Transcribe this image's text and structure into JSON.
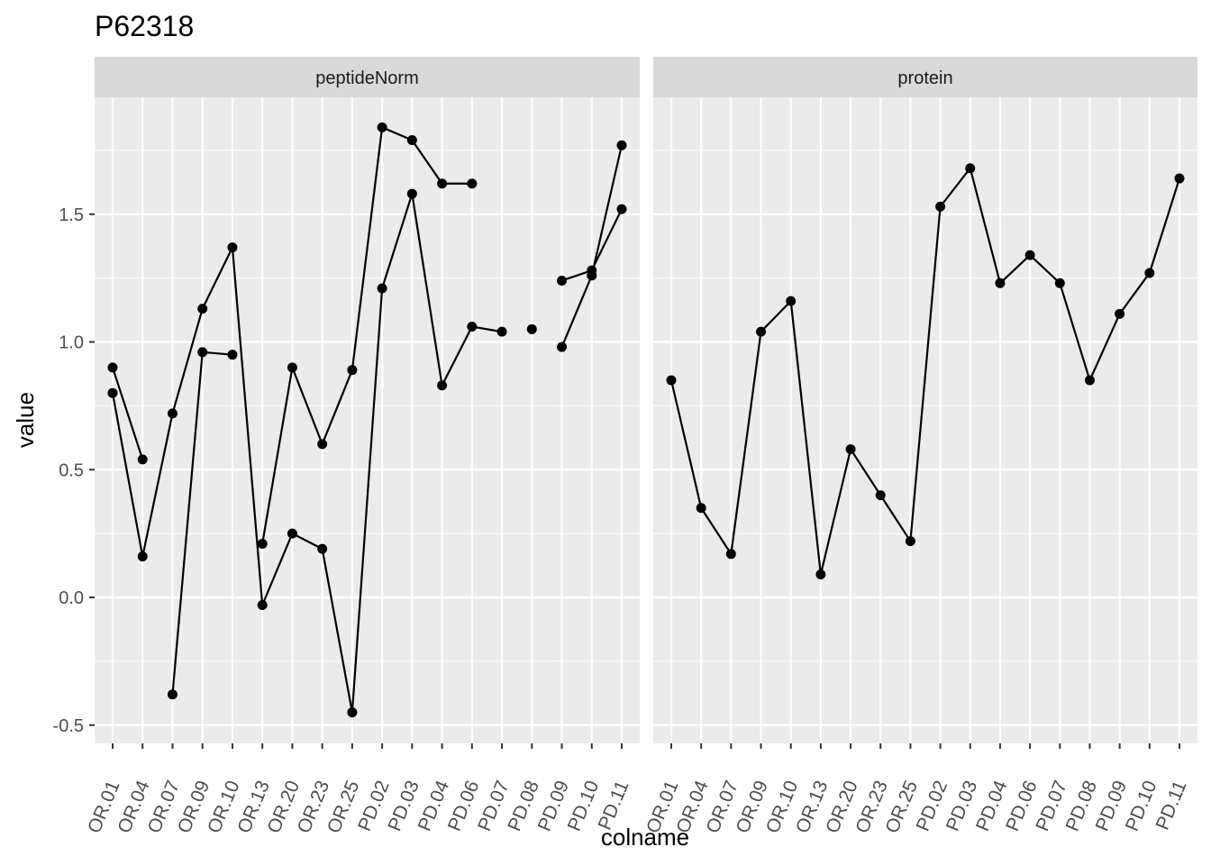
{
  "chart_data": {
    "type": "line",
    "title": "P62318",
    "xlabel": "colname",
    "ylabel": "value",
    "ylim": [
      -0.55,
      1.95
    ],
    "yticks": [
      -0.5,
      0.0,
      0.5,
      1.0,
      1.5
    ],
    "ytick_labels": [
      "-0.5",
      "0.0",
      "0.5",
      "1.0",
      "1.5"
    ],
    "categories": [
      "OR.01",
      "OR.04",
      "OR.07",
      "OR.09",
      "OR.10",
      "OR.13",
      "OR.20",
      "OR.23",
      "OR.25",
      "PD.02",
      "PD.03",
      "PD.04",
      "PD.06",
      "PD.07",
      "PD.08",
      "PD.09",
      "PD.10",
      "PD.11"
    ],
    "grid": true,
    "legend": "none",
    "colors": {
      "panel_bg": "#ebebeb",
      "strip_bg": "#d9d9d9",
      "grid": "#ffffff",
      "line": "#000000",
      "axis_text": "#4d4d4d"
    },
    "facets": [
      {
        "label": "peptideNorm",
        "series": [
          {
            "values": [
              0.9,
              0.54,
              null,
              null,
              null,
              0.21,
              0.9,
              0.6,
              0.89,
              1.84,
              1.79,
              1.62,
              1.62,
              null,
              null,
              1.24,
              1.28,
              1.52
            ]
          },
          {
            "values": [
              0.8,
              0.16,
              0.72,
              1.13,
              1.37,
              -0.03,
              0.25,
              0.19,
              -0.45,
              1.21,
              1.58,
              0.83,
              1.06,
              1.04,
              null,
              0.98,
              1.26,
              1.77
            ]
          },
          {
            "values": [
              null,
              null,
              -0.38,
              0.96,
              0.95,
              null,
              null,
              null,
              null,
              null,
              null,
              null,
              null,
              null,
              1.05,
              null,
              null,
              null
            ]
          }
        ]
      },
      {
        "label": "protein",
        "series": [
          {
            "values": [
              0.85,
              0.35,
              0.17,
              1.04,
              1.16,
              0.09,
              0.58,
              0.4,
              0.22,
              1.53,
              1.68,
              1.23,
              1.34,
              1.23,
              0.85,
              1.11,
              1.27,
              1.64
            ]
          }
        ]
      }
    ]
  }
}
